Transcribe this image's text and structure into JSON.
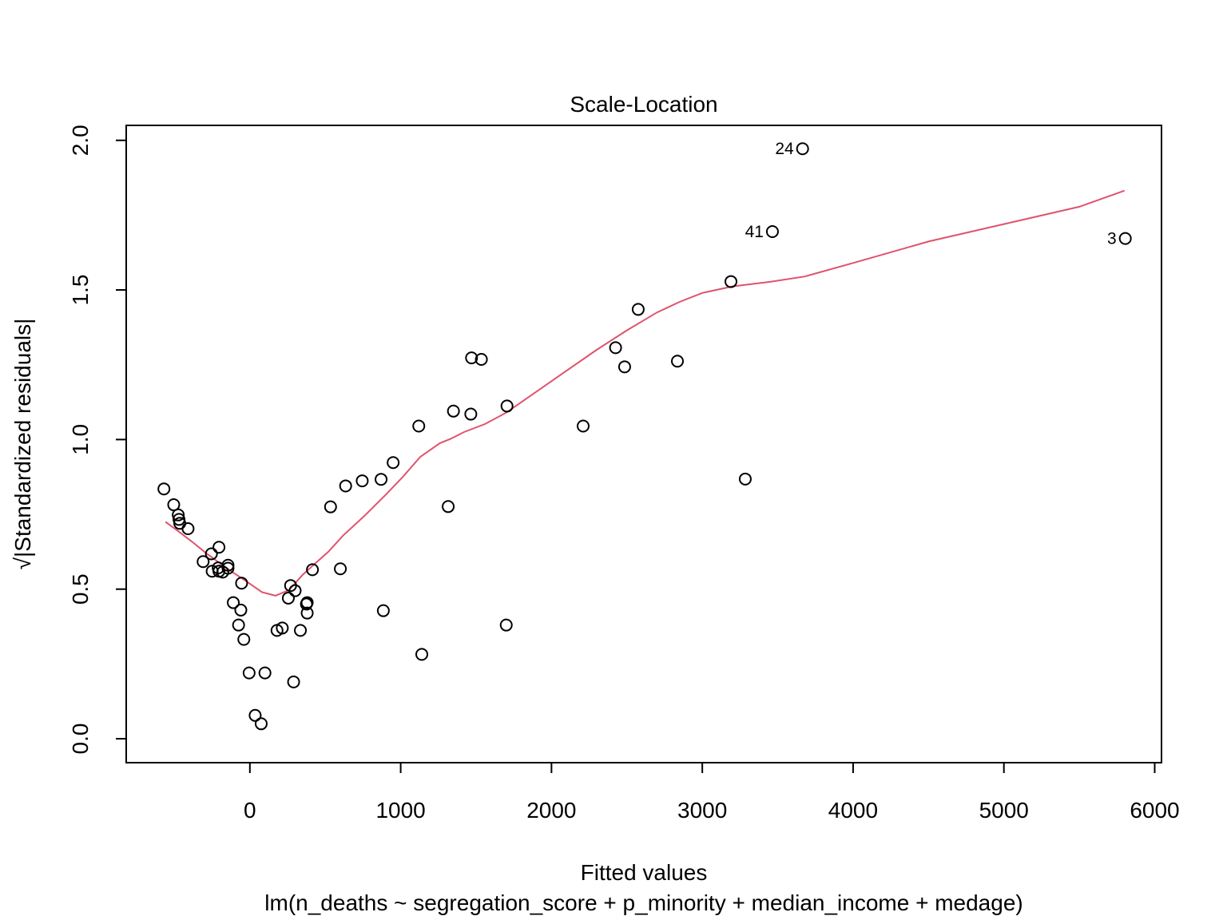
{
  "chart_data": {
    "type": "scatter",
    "title": "Scale-Location",
    "xlabel": "Fitted values",
    "subtitle": "lm(n_deaths ~ segregation_score + p_minority + median_income + medage)",
    "ylabel_radical": "√",
    "ylabel": "|Standardized residuals|",
    "xlim": [
      -820,
      6045
    ],
    "ylim": [
      -0.08,
      2.05
    ],
    "xticks": [
      0,
      1000,
      2000,
      3000,
      4000,
      5000,
      6000
    ],
    "xtick_labels": [
      "0",
      "1000",
      "2000",
      "3000",
      "4000",
      "5000",
      "6000"
    ],
    "yticks": [
      0.0,
      0.5,
      1.0,
      1.5,
      2.0
    ],
    "ytick_labels": [
      "0.0",
      "0.5",
      "1.0",
      "1.5",
      "2.0"
    ],
    "grid": false,
    "colors": {
      "points": "#000000",
      "smoother": "#DF536B",
      "frame": "#000000"
    },
    "points": [
      {
        "x": -570,
        "y": 0.835
      },
      {
        "x": -505,
        "y": 0.782
      },
      {
        "x": -475,
        "y": 0.748
      },
      {
        "x": -470,
        "y": 0.733
      },
      {
        "x": -465,
        "y": 0.72
      },
      {
        "x": -410,
        "y": 0.702
      },
      {
        "x": -310,
        "y": 0.592
      },
      {
        "x": -255,
        "y": 0.618
      },
      {
        "x": -250,
        "y": 0.56
      },
      {
        "x": -210,
        "y": 0.571
      },
      {
        "x": -205,
        "y": 0.64
      },
      {
        "x": -205,
        "y": 0.56
      },
      {
        "x": -180,
        "y": 0.557
      },
      {
        "x": -145,
        "y": 0.58
      },
      {
        "x": -145,
        "y": 0.57
      },
      {
        "x": -110,
        "y": 0.455
      },
      {
        "x": -75,
        "y": 0.38
      },
      {
        "x": -60,
        "y": 0.43
      },
      {
        "x": -55,
        "y": 0.52
      },
      {
        "x": -40,
        "y": 0.332
      },
      {
        "x": -5,
        "y": 0.22
      },
      {
        "x": 35,
        "y": 0.078
      },
      {
        "x": 75,
        "y": 0.05
      },
      {
        "x": 100,
        "y": 0.22
      },
      {
        "x": 180,
        "y": 0.362
      },
      {
        "x": 215,
        "y": 0.37
      },
      {
        "x": 255,
        "y": 0.47
      },
      {
        "x": 270,
        "y": 0.512
      },
      {
        "x": 290,
        "y": 0.19
      },
      {
        "x": 300,
        "y": 0.495
      },
      {
        "x": 335,
        "y": 0.362
      },
      {
        "x": 375,
        "y": 0.45
      },
      {
        "x": 380,
        "y": 0.455
      },
      {
        "x": 380,
        "y": 0.42
      },
      {
        "x": 415,
        "y": 0.565
      },
      {
        "x": 535,
        "y": 0.775
      },
      {
        "x": 600,
        "y": 0.568
      },
      {
        "x": 635,
        "y": 0.845
      },
      {
        "x": 745,
        "y": 0.862
      },
      {
        "x": 870,
        "y": 0.867
      },
      {
        "x": 885,
        "y": 0.428
      },
      {
        "x": 950,
        "y": 0.923
      },
      {
        "x": 1120,
        "y": 1.045
      },
      {
        "x": 1140,
        "y": 0.282
      },
      {
        "x": 1315,
        "y": 0.776
      },
      {
        "x": 1350,
        "y": 1.095
      },
      {
        "x": 1465,
        "y": 1.085
      },
      {
        "x": 1470,
        "y": 1.273
      },
      {
        "x": 1535,
        "y": 1.268
      },
      {
        "x": 1700,
        "y": 0.38
      },
      {
        "x": 1705,
        "y": 1.112
      },
      {
        "x": 2210,
        "y": 1.045
      },
      {
        "x": 2425,
        "y": 1.307
      },
      {
        "x": 2485,
        "y": 1.243
      },
      {
        "x": 2575,
        "y": 1.435
      },
      {
        "x": 2835,
        "y": 1.262
      },
      {
        "x": 3190,
        "y": 1.528
      },
      {
        "x": 3285,
        "y": 0.868
      },
      {
        "x": 3465,
        "y": 1.695,
        "label": "41"
      },
      {
        "x": 3665,
        "y": 1.972,
        "label": "24"
      },
      {
        "x": 5805,
        "y": 1.672,
        "label": "3"
      }
    ],
    "smoother": {
      "name": "",
      "x": [
        -560,
        -470,
        -380,
        -290,
        -200,
        -110,
        -20,
        80,
        170,
        260,
        350,
        420,
        520,
        620,
        760,
        900,
        1010,
        1130,
        1260,
        1330,
        1420,
        1560,
        1700,
        1900,
        2100,
        2300,
        2500,
        2700,
        2850,
        3000,
        3200,
        3450,
        3680,
        4000,
        4500,
        5000,
        5500,
        5800
      ],
      "y": [
        0.725,
        0.692,
        0.657,
        0.62,
        0.587,
        0.555,
        0.525,
        0.49,
        0.478,
        0.497,
        0.548,
        0.58,
        0.625,
        0.68,
        0.745,
        0.815,
        0.873,
        0.942,
        0.988,
        1.002,
        1.025,
        1.052,
        1.09,
        1.16,
        1.23,
        1.3,
        1.365,
        1.425,
        1.46,
        1.49,
        1.512,
        1.527,
        1.545,
        1.59,
        1.662,
        1.72,
        1.778,
        1.832
      ]
    }
  }
}
